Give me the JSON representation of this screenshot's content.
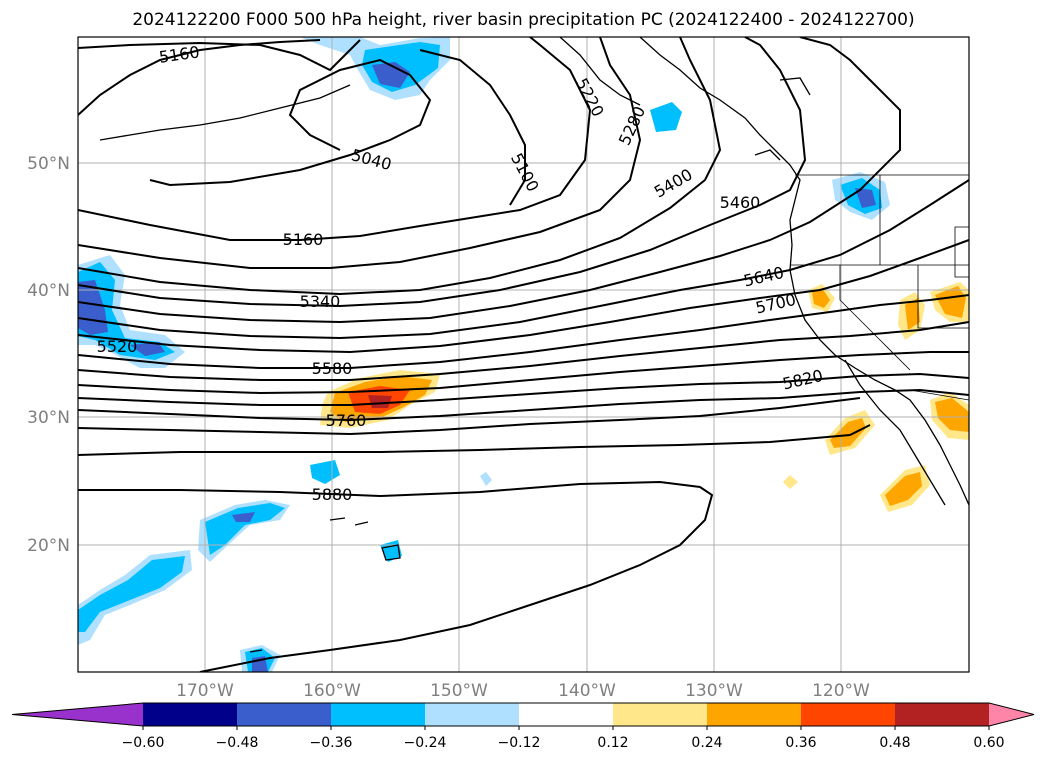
{
  "title": "2024122200 F000 500 hPa height, river basin precipitation PC (2024122400 - 2024122700)",
  "map": {
    "lat_labels": [
      "50°N",
      "40°N",
      "30°N",
      "20°N"
    ],
    "lon_labels": [
      "170°W",
      "160°W",
      "150°W",
      "140°W",
      "130°W",
      "120°W"
    ],
    "contour_labels": [
      "5160",
      "5220",
      "5280",
      "5040",
      "5100",
      "5400",
      "5460",
      "5160",
      "5640",
      "5340",
      "5700",
      "5520",
      "5580",
      "5820",
      "5760",
      "5880"
    ]
  },
  "colorbar": {
    "ticks": [
      "−0.60",
      "−0.48",
      "−0.36",
      "−0.24",
      "−0.12",
      "0.12",
      "0.24",
      "0.36",
      "0.48",
      "0.60"
    ],
    "colors": [
      "#9932cc",
      "#00008b",
      "#3a5fcd",
      "#00bfff",
      "#b0e0ff",
      "#ffffff",
      "#ffe78a",
      "#ffa500",
      "#ff4500",
      "#b22222",
      "#ff85a8"
    ]
  },
  "colors": {
    "contour": "#000000",
    "grid": "#b0b0b0",
    "coast": "#000000"
  }
}
